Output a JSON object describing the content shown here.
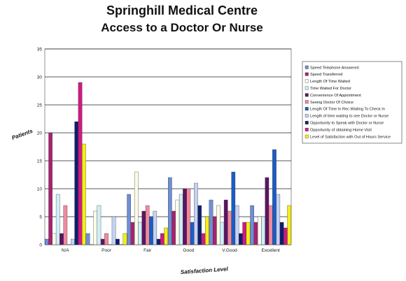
{
  "chart_data": {
    "type": "bar",
    "title": "Springhill Medical Centre",
    "subtitle": "Access to a Doctor Or Nurse",
    "ylabel": "Patients",
    "xlabel": "Satisfaction Level",
    "ylim": [
      0,
      35
    ],
    "yticks": [
      0,
      5,
      10,
      15,
      20,
      25,
      30,
      35
    ],
    "grid": true,
    "legend_position": "right",
    "categories": [
      "N/A",
      "Poor",
      "Fair",
      "Good",
      "V.Good",
      "Excellent"
    ],
    "series": [
      {
        "name": "Speed Telephone Answered",
        "color": "#6f8ed6",
        "values": [
          1,
          2,
          9,
          12,
          8,
          7
        ]
      },
      {
        "name": "Speed Transferred",
        "color": "#a6236f",
        "values": [
          20,
          0,
          4,
          6,
          5,
          4
        ]
      },
      {
        "name": "Length Of Time Waited",
        "color": "#fbfbe8",
        "values": [
          2,
          6,
          13,
          8,
          7,
          5
        ]
      },
      {
        "name": "Time Waited For Doctor",
        "color": "#cfeefa",
        "values": [
          9,
          7,
          4,
          9,
          4,
          5
        ]
      },
      {
        "name": "Convenience Of Appointment",
        "color": "#5b1560",
        "values": [
          2,
          1,
          6,
          10,
          8,
          12
        ]
      },
      {
        "name": "Seeing Doctor Of Choice",
        "color": "#f08a9c",
        "values": [
          7,
          2,
          7,
          10,
          6,
          7
        ]
      },
      {
        "name": "Length Of Time In Rec Waiting To Check In",
        "color": "#1c5cc4",
        "values": [
          0,
          0,
          5,
          4,
          13,
          17
        ]
      },
      {
        "name": "Length of time waiting to see Doctor or Nurse",
        "color": "#c4d2f2",
        "values": [
          1,
          5,
          6,
          11,
          7,
          9
        ]
      },
      {
        "name": "Opportunity to Speak with Doctor or Nurse",
        "color": "#0f1f6e",
        "values": [
          22,
          1,
          1,
          7,
          2,
          4
        ]
      },
      {
        "name": "Opportunity of obtaining Home Visit",
        "color": "#d01a82",
        "values": [
          29,
          0,
          2,
          2,
          4,
          3
        ]
      },
      {
        "name": "Level of Satisfaction with Out of Hours Service",
        "color": "#f4ee16",
        "values": [
          18,
          2,
          3,
          5,
          4,
          7
        ]
      }
    ]
  }
}
